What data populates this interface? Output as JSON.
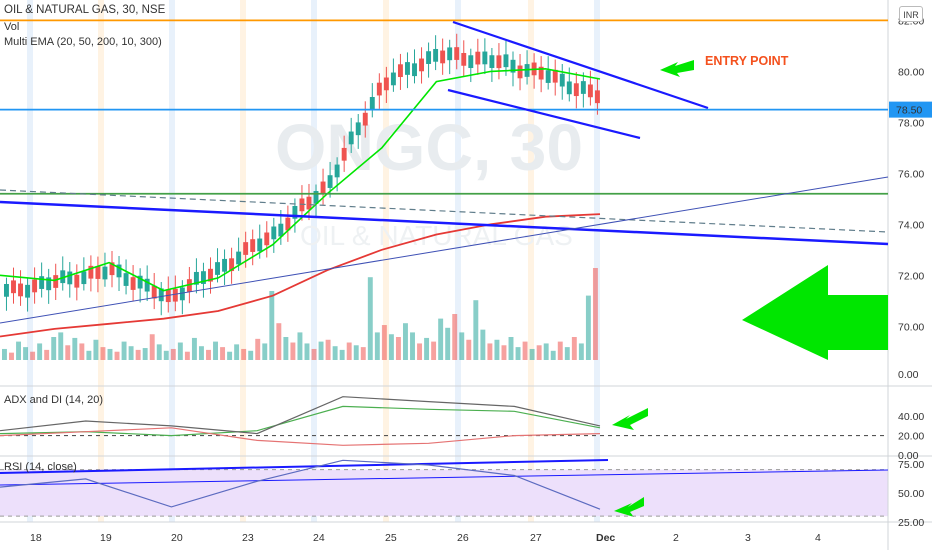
{
  "header": {
    "title": "OIL & NATURAL GAS, 30, NSE",
    "volume_label": "Vol",
    "ema_label": "Multi EMA (20, 50, 200, 10, 300)",
    "currency_button": "INR",
    "watermark_symbol": "ONGC, 30",
    "watermark_name": "OIL & NATURAL GAS"
  },
  "annotations": {
    "entry_point": "ENTRY POINT"
  },
  "colors": {
    "up": "#26a69a",
    "down": "#ef5350",
    "ema_fast": "#00e600",
    "ema_slow": "#e53935",
    "trend": "#1a1aff",
    "resistance": "#ff9800",
    "marker": "#2196f3",
    "support": "#43a047",
    "arrow": "#00e600",
    "rsi_band": "#ede0fb"
  },
  "x_axis": {
    "labels": [
      "18",
      "19",
      "20",
      "23",
      "24",
      "25",
      "26",
      "27",
      "Dec",
      "2",
      "3",
      "4"
    ]
  },
  "chart_data": [
    {
      "type": "candlestick",
      "name": "price",
      "y_ticks": [
        "82.00",
        "80.00",
        "78.00",
        "76.00",
        "74.00",
        "72.00",
        "70.00"
      ],
      "price_tag": "78.50",
      "ylim": [
        68.6,
        82.8
      ],
      "sessions": [
        "18",
        "19",
        "20",
        "23",
        "24",
        "25",
        "26",
        "27"
      ],
      "ohlc_checkpoints": [
        [
          71.3,
          71.6,
          71.1,
          71.4
        ],
        [
          71.7,
          72.2,
          71.3,
          71.9
        ],
        [
          72.3,
          72.6,
          71.9,
          72.1
        ],
        [
          71.2,
          71.5,
          70.8,
          71.0
        ],
        [
          72.2,
          72.6,
          71.8,
          72.4
        ],
        [
          73.5,
          74.0,
          73.1,
          73.8
        ],
        [
          75.3,
          76.2,
          74.8,
          75.9
        ],
        [
          78.8,
          80.5,
          78.3,
          80.2
        ],
        [
          80.5,
          81.8,
          80.1,
          80.8
        ],
        [
          80.6,
          81.0,
          80.1,
          80.3
        ],
        [
          80.1,
          80.4,
          79.6,
          79.7
        ],
        [
          79.4,
          79.6,
          78.5,
          78.7
        ]
      ],
      "ema_fast": [
        72.0,
        71.8,
        72.5,
        71.4,
        71.9,
        73.2,
        75.2,
        77.0,
        79.6,
        80.0,
        80.1,
        79.7
      ],
      "ema_slow": [
        69.6,
        69.9,
        70.1,
        70.3,
        70.6,
        71.2,
        72.2,
        73.0,
        73.6,
        74.0,
        74.3,
        74.4
      ],
      "levels": [
        {
          "name": "resistance",
          "value": 82.0
        },
        {
          "name": "marked-price",
          "value": 78.5
        },
        {
          "name": "support",
          "value": 75.2
        }
      ]
    },
    {
      "type": "bar",
      "name": "volume",
      "values": [
        12,
        8,
        20,
        14,
        9,
        18,
        11,
        25,
        30,
        16,
        24,
        18,
        10,
        22,
        14,
        12,
        9,
        20,
        15,
        11,
        13,
        28,
        17,
        10,
        12,
        19,
        9,
        24,
        15,
        11,
        20,
        14,
        9,
        17,
        12,
        10,
        23,
        18,
        75,
        40,
        25,
        19,
        30,
        18,
        12,
        20,
        22,
        15,
        11,
        19,
        16,
        14,
        90,
        30,
        38,
        28,
        25,
        40,
        30,
        18,
        24,
        20,
        45,
        35,
        50,
        30,
        22,
        65,
        33,
        18,
        22,
        16,
        25,
        14,
        20,
        12,
        16,
        18,
        10,
        20,
        14,
        25,
        18,
        70,
        100
      ]
    },
    {
      "type": "line",
      "name": "ADX and DI",
      "label": "ADX and DI (14, 20)",
      "y_ticks": [
        "40.00",
        "20.00",
        "0.00"
      ],
      "ylim": [
        0,
        70
      ],
      "x": [
        "18",
        "19",
        "20",
        "23",
        "24",
        "25",
        "26",
        "27"
      ],
      "series": [
        {
          "name": "ADX",
          "color": "#4caf50",
          "values": [
            22,
            24,
            20,
            25,
            50,
            47,
            45,
            28
          ]
        },
        {
          "name": "+DI",
          "color": "#666666",
          "values": [
            25,
            35,
            30,
            22,
            60,
            55,
            50,
            30
          ]
        },
        {
          "name": "-DI",
          "color": "#e57373",
          "values": [
            20,
            24,
            28,
            15,
            10,
            12,
            20,
            22
          ]
        }
      ],
      "reference_level": 20
    },
    {
      "type": "line",
      "name": "RSI",
      "label": "RSI (14, close)",
      "y_ticks": [
        "75.00",
        "50.00",
        "25.00"
      ],
      "ylim": [
        25,
        80
      ],
      "band": [
        30,
        70
      ],
      "x": [
        "18",
        "19",
        "20",
        "23",
        "24",
        "25",
        "26",
        "27"
      ],
      "series": [
        {
          "name": "RSI",
          "color": "#5c6bc0",
          "values": [
            55,
            62,
            38,
            60,
            78,
            74,
            65,
            36
          ]
        }
      ]
    }
  ]
}
